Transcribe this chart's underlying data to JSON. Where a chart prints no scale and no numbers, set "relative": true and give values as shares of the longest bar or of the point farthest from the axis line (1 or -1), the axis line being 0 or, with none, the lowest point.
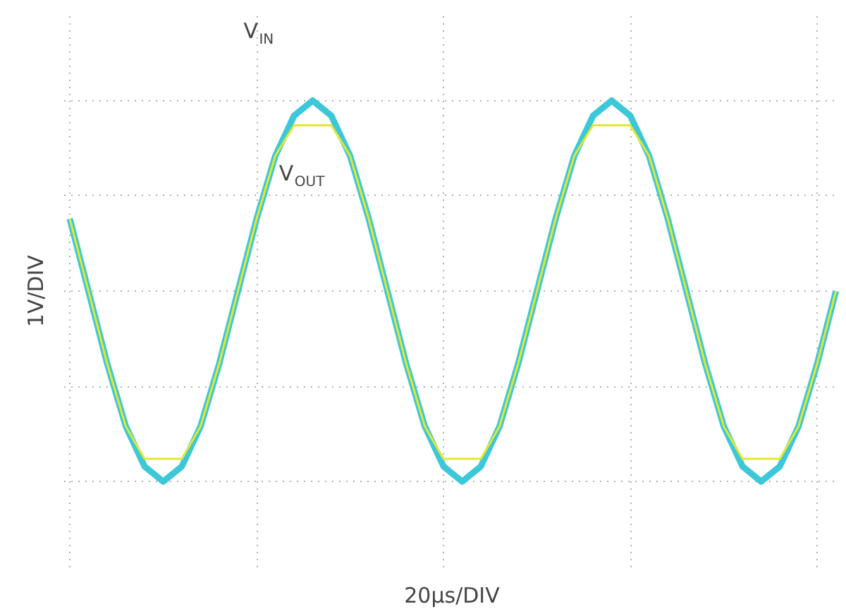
{
  "chart_data": {
    "type": "line",
    "relative": true,
    "xlabel": "20µs/DIV",
    "ylabel": "1V/DIV",
    "categories": [
      null,
      null,
      null,
      null,
      null,
      null,
      null,
      null,
      null,
      null,
      null,
      null,
      null,
      null,
      null,
      null,
      null,
      null,
      null,
      null,
      null,
      null,
      null,
      null,
      null,
      null,
      null,
      null,
      null,
      null,
      null,
      null,
      null,
      null,
      null,
      null,
      null,
      null,
      null,
      null,
      null,
      null
    ],
    "series": [
      {
        "color": "#3cc8d8",
        "values": [
          0.38,
          0,
          -0.38,
          -0.71,
          -0.92,
          -1,
          -0.92,
          -0.71,
          -0.38,
          0,
          0.38,
          0.71,
          0.92,
          1,
          0.92,
          0.71,
          0.38,
          0,
          -0.38,
          -0.71,
          -0.92,
          -1,
          -0.92,
          -0.71,
          -0.38,
          0,
          0.38,
          0.71,
          0.92,
          1,
          0.92,
          0.71,
          0.38,
          0,
          -0.38,
          -0.71,
          -0.92,
          -1,
          -0.92,
          -0.71,
          -0.38,
          0
        ]
      },
      {
        "color": "#e6e62e",
        "values": [
          0.38,
          0,
          -0.38,
          -0.71,
          -0.88,
          -0.88,
          -0.88,
          -0.71,
          -0.38,
          0,
          0.38,
          0.71,
          0.87,
          0.87,
          0.87,
          0.71,
          0.38,
          0,
          -0.38,
          -0.71,
          -0.88,
          -0.88,
          -0.88,
          -0.71,
          -0.38,
          0,
          0.38,
          0.71,
          0.87,
          0.87,
          0.87,
          0.71,
          0.38,
          0,
          -0.38,
          -0.71,
          -0.88,
          -0.88,
          -0.88,
          -0.71,
          -0.38,
          0
        ]
      }
    ],
    "annotations": [
      "V$_{IN}$",
      "V$_{OUT}$"
    ],
    "grid": true,
    "marker": "none",
    "line_style": "solid"
  }
}
